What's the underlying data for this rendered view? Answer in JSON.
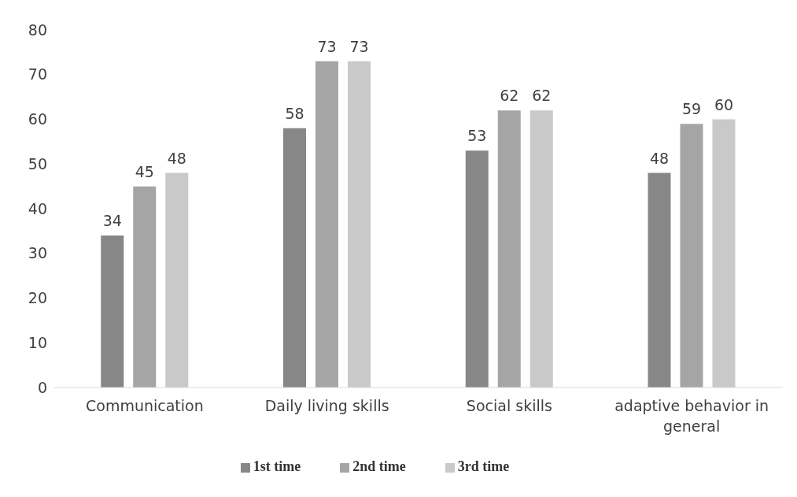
{
  "chart_data": {
    "type": "bar",
    "categories": [
      "Communication",
      "Daily living skills",
      "Social skills",
      "adaptive behavior in general"
    ],
    "series": [
      {
        "name": "1st time",
        "color": "#878787",
        "values": [
          34,
          58,
          53,
          48
        ]
      },
      {
        "name": "2nd time",
        "color": "#a5a5a5",
        "values": [
          45,
          73,
          62,
          59
        ]
      },
      {
        "name": "3rd time",
        "color": "#c9c9c9",
        "values": [
          48,
          73,
          62,
          60
        ]
      }
    ],
    "ylim": [
      0,
      80
    ],
    "yticks": [
      0,
      10,
      20,
      30,
      40,
      50,
      60,
      70,
      80
    ],
    "grid": false,
    "legend": "bottom",
    "data_labels": true
  }
}
